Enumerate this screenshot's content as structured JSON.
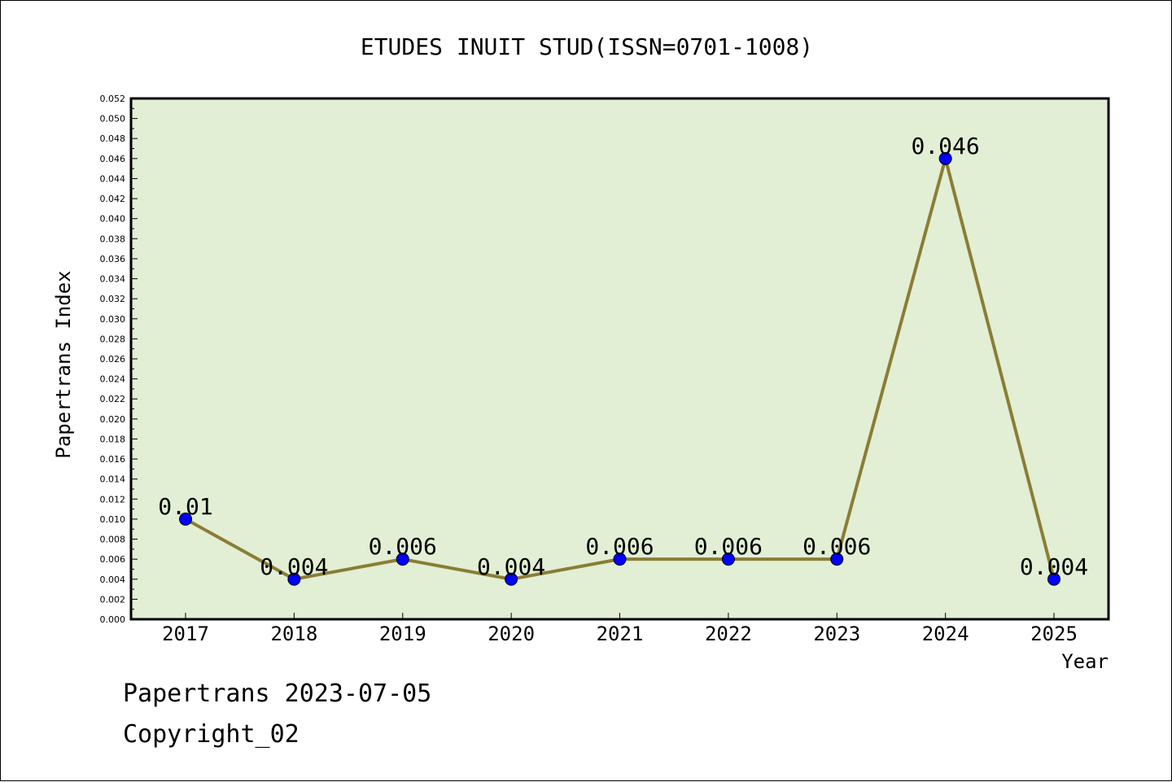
{
  "chart_data": {
    "type": "line",
    "title": "ETUDES INUIT STUD(ISSN=0701-1008)",
    "xlabel": "Year",
    "ylabel": "Papertrans Index",
    "categories": [
      "2017",
      "2018",
      "2019",
      "2020",
      "2021",
      "2022",
      "2023",
      "2024",
      "2025"
    ],
    "series": [
      {
        "values": [
          0.01,
          0.004,
          0.006,
          0.004,
          0.006,
          0.006,
          0.006,
          0.046,
          0.004
        ],
        "labels": [
          "0.01",
          "0.004",
          "0.006",
          "0.004",
          "0.006",
          "0.006",
          "0.006",
          "0.046",
          "0.004"
        ]
      }
    ],
    "ylim": [
      0,
      0.052
    ],
    "ytick_step": 0.002,
    "grid": false,
    "colors": {
      "plot_background": "#e2efd5",
      "line": "#8b7d35",
      "marker": "#0000ff"
    }
  },
  "footer": {
    "line1": "Papertrans 2023-07-05",
    "line2": "Copyright_02"
  }
}
